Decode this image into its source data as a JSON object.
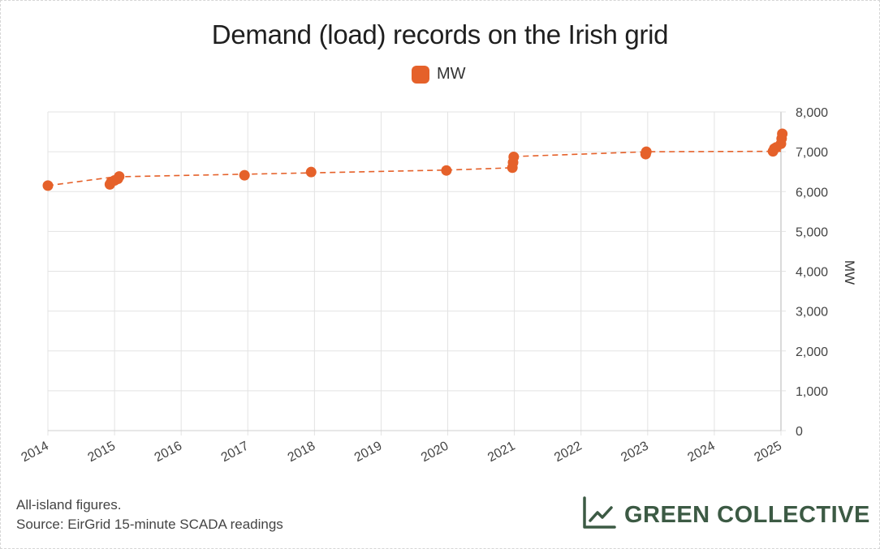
{
  "title": "Demand (load) records on the Irish grid",
  "legend": {
    "label": "MW"
  },
  "footnote": {
    "line1": "All-island figures.",
    "line2": "Source: EirGrid 15-minute SCADA readings"
  },
  "brand": {
    "name": "GREEN COLLECTIVE",
    "icon": "line-chart-icon"
  },
  "colors": {
    "series": "#e5612a",
    "brand": "#3c5a44",
    "grid": "#e3e3e3"
  },
  "chart_data": {
    "type": "scatter",
    "title": "Demand (load) records on the Irish grid",
    "xlabel": "",
    "ylabel": "MW",
    "xlim": [
      2014,
      2025
    ],
    "ylim": [
      0,
      8000
    ],
    "x_ticks": [
      "2014",
      "2015",
      "2016",
      "2017",
      "2018",
      "2019",
      "2020",
      "2021",
      "2022",
      "2023",
      "2024",
      "2025"
    ],
    "y_ticks": [
      "0",
      "1,000",
      "2,000",
      "3,000",
      "4,000",
      "5,000",
      "6,000",
      "7,000",
      "8,000"
    ],
    "legend": [
      "MW"
    ],
    "series": [
      {
        "name": "MW",
        "points": [
          {
            "x": 2014.0,
            "y": 6150
          },
          {
            "x": 2014.93,
            "y": 6180
          },
          {
            "x": 2014.95,
            "y": 6240
          },
          {
            "x": 2015.0,
            "y": 6280
          },
          {
            "x": 2015.05,
            "y": 6320
          },
          {
            "x": 2015.07,
            "y": 6380
          },
          {
            "x": 2016.95,
            "y": 6410
          },
          {
            "x": 2017.95,
            "y": 6490
          },
          {
            "x": 2019.98,
            "y": 6530
          },
          {
            "x": 2020.97,
            "y": 6600
          },
          {
            "x": 2020.98,
            "y": 6730
          },
          {
            "x": 2020.99,
            "y": 6870
          },
          {
            "x": 2022.97,
            "y": 6940
          },
          {
            "x": 2022.98,
            "y": 7000
          },
          {
            "x": 2024.88,
            "y": 7010
          },
          {
            "x": 2024.9,
            "y": 7080
          },
          {
            "x": 2024.93,
            "y": 7110
          },
          {
            "x": 2025.0,
            "y": 7200
          },
          {
            "x": 2025.01,
            "y": 7330
          },
          {
            "x": 2025.02,
            "y": 7450
          }
        ]
      }
    ],
    "trendline": {
      "style": "dashed",
      "points": [
        {
          "x": 2014.0,
          "y": 6150
        },
        {
          "x": 2015.0,
          "y": 6370
        },
        {
          "x": 2020.0,
          "y": 6540
        },
        {
          "x": 2021.0,
          "y": 6600
        },
        {
          "x": 2021.0,
          "y": 6880
        },
        {
          "x": 2023.0,
          "y": 7000
        },
        {
          "x": 2025.0,
          "y": 7010
        }
      ]
    }
  }
}
